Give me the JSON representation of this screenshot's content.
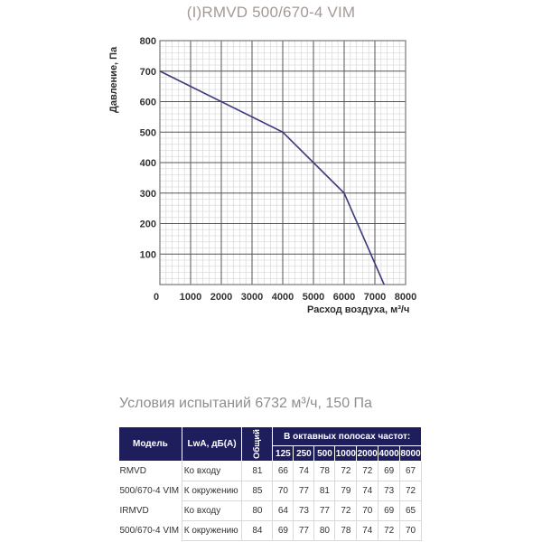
{
  "title": "(I)RMVD 500/670-4 VIM",
  "chart_data": {
    "type": "line",
    "title": "(I)RMVD 500/670-4 VIM",
    "xlabel": "Расход воздуха, м³/ч",
    "ylabel": "Давление, Па",
    "xlim": [
      0,
      8000
    ],
    "ylim": [
      0,
      800
    ],
    "x_ticks": [
      0,
      1000,
      2000,
      3000,
      4000,
      5000,
      6000,
      7000,
      8000
    ],
    "y_ticks": [
      100,
      200,
      300,
      400,
      500,
      600,
      700,
      800
    ],
    "grid": true,
    "legend": null,
    "series": [
      {
        "name": "(I)RMVD 500/670-4 VIM",
        "color": "#3b3a7a",
        "x": [
          0,
          4000,
          6000,
          7300
        ],
        "y": [
          700,
          500,
          300,
          0
        ]
      }
    ]
  },
  "test_conditions": "Условия испытаний 6732 м³/ч, 150 Па",
  "table": {
    "headers": {
      "model": "Модель",
      "lwa": "LwA, дБ(A)",
      "total": "Общий",
      "octave_group": "В октавных полосах частот:",
      "frequencies": [
        "125",
        "250",
        "500",
        "1000",
        "2000",
        "4000",
        "8000"
      ]
    },
    "groups": [
      {
        "model_line1": "RMVD",
        "model_line2": "500/670-4 VIM",
        "rows": [
          {
            "label": "Ко входу",
            "total": "81",
            "values": [
              "66",
              "74",
              "78",
              "72",
              "72",
              "69",
              "67"
            ]
          },
          {
            "label": "К окружению",
            "total": "85",
            "values": [
              "70",
              "77",
              "81",
              "79",
              "74",
              "73",
              "72"
            ]
          }
        ]
      },
      {
        "model_line1": "IRMVD",
        "model_line2": "500/670-4 VIM",
        "rows": [
          {
            "label": "Ко входу",
            "total": "80",
            "values": [
              "64",
              "73",
              "77",
              "72",
              "70",
              "69",
              "65"
            ]
          },
          {
            "label": "К окружению",
            "total": "84",
            "values": [
              "69",
              "77",
              "80",
              "78",
              "74",
              "72",
              "70"
            ]
          }
        ]
      }
    ]
  }
}
